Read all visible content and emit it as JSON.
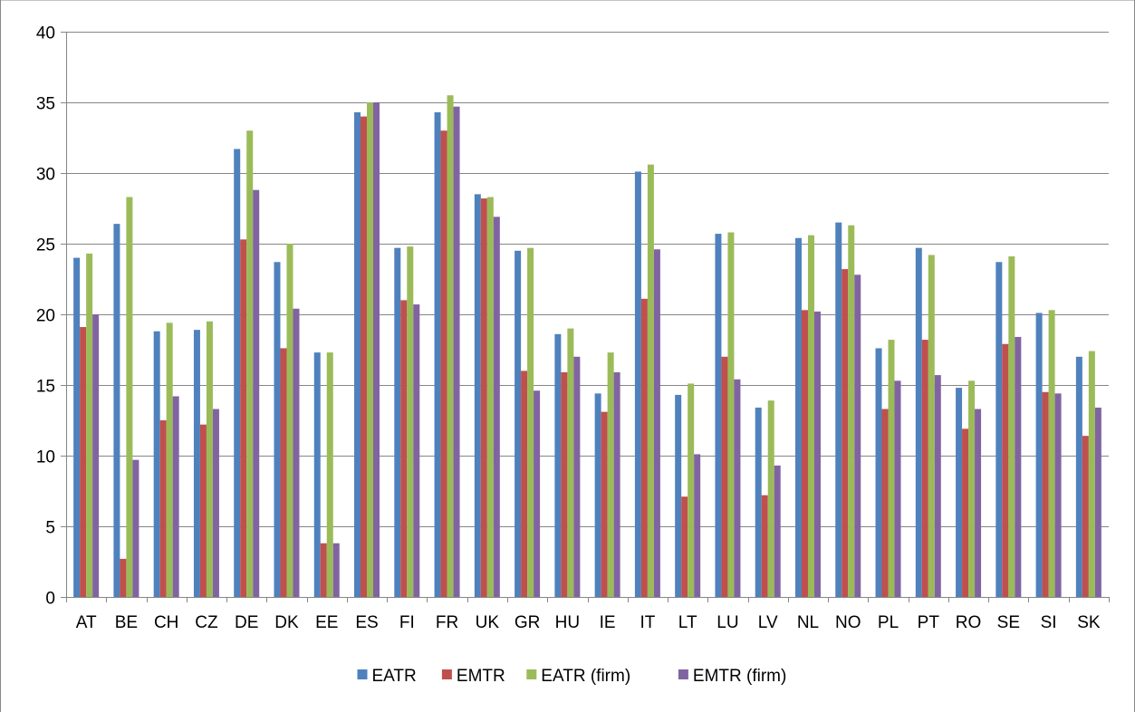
{
  "chart_data": {
    "type": "bar",
    "categories": [
      "AT",
      "BE",
      "CH",
      "CZ",
      "DE",
      "DK",
      "EE",
      "ES",
      "FI",
      "FR",
      "UK",
      "GR",
      "HU",
      "IE",
      "IT",
      "LT",
      "LU",
      "LV",
      "NL",
      "NO",
      "PL",
      "PT",
      "RO",
      "SE",
      "SI",
      "SK"
    ],
    "series": [
      {
        "name": "EATR",
        "color": "#4F81BD",
        "values": [
          24.0,
          26.4,
          18.8,
          18.9,
          31.7,
          23.7,
          17.3,
          34.3,
          24.7,
          34.3,
          28.5,
          24.5,
          18.6,
          14.4,
          30.1,
          14.3,
          25.7,
          13.4,
          25.4,
          26.5,
          17.6,
          24.7,
          14.8,
          23.7,
          20.1,
          17.0
        ]
      },
      {
        "name": "EMTR",
        "color": "#C0504D",
        "values": [
          19.1,
          2.7,
          12.5,
          12.2,
          25.3,
          17.6,
          3.8,
          34.0,
          21.0,
          33.0,
          28.2,
          16.0,
          15.9,
          13.1,
          21.1,
          7.1,
          17.0,
          7.2,
          20.3,
          23.2,
          13.3,
          18.2,
          11.9,
          17.9,
          14.5,
          11.4
        ]
      },
      {
        "name": "EATR (firm)",
        "color": "#9BBB59",
        "values": [
          24.3,
          28.3,
          19.4,
          19.5,
          33.0,
          25.0,
          17.3,
          35.0,
          24.8,
          35.5,
          28.3,
          24.7,
          19.0,
          17.3,
          30.6,
          15.1,
          25.8,
          13.9,
          25.6,
          26.3,
          18.2,
          24.2,
          15.3,
          24.1,
          20.3,
          17.4
        ]
      },
      {
        "name": "EMTR (firm)",
        "color": "#8064A2",
        "values": [
          20.0,
          9.7,
          14.2,
          13.3,
          28.8,
          20.4,
          3.8,
          35.0,
          20.7,
          34.7,
          26.9,
          14.6,
          17.0,
          15.9,
          24.6,
          10.1,
          15.4,
          9.3,
          20.2,
          22.8,
          15.3,
          15.7,
          13.3,
          18.4,
          14.4,
          13.4
        ]
      }
    ],
    "ylim": [
      0,
      40
    ],
    "yticks": [
      0,
      5,
      10,
      15,
      20,
      25,
      30,
      35,
      40
    ],
    "grid": true,
    "legend_position": "bottom",
    "title": "",
    "xlabel": "",
    "ylabel": ""
  }
}
